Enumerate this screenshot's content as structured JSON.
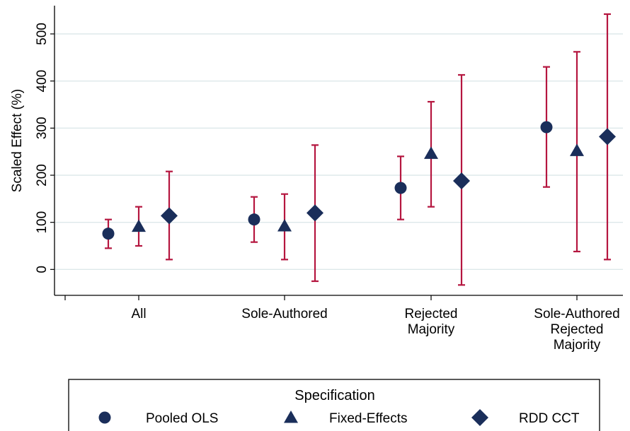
{
  "chart_data": {
    "type": "scatter",
    "subtype": "point-estimate-with-confidence-intervals",
    "ylabel": "Scaled Effect (%)",
    "xlabel": "",
    "ylim": [
      -55,
      560
    ],
    "yticks": [
      0,
      100,
      200,
      300,
      400,
      500
    ],
    "grid": true,
    "categories": [
      [
        "All"
      ],
      [
        "Sole-Authored"
      ],
      [
        "Rejected",
        "Majority"
      ],
      [
        "Sole-Authored",
        "Rejected",
        "Majority"
      ]
    ],
    "series": [
      {
        "name": "Pooled OLS",
        "marker": "circle",
        "values": [
          76,
          106,
          173,
          302
        ],
        "ci_low": [
          45,
          58,
          106,
          175
        ],
        "ci_high": [
          106,
          154,
          240,
          430
        ]
      },
      {
        "name": "Fixed-Effects",
        "marker": "triangle",
        "values": [
          91,
          92,
          246,
          252
        ],
        "ci_low": [
          50,
          21,
          133,
          38
        ],
        "ci_high": [
          133,
          160,
          356,
          462
        ]
      },
      {
        "name": "RDD CCT",
        "marker": "diamond",
        "values": [
          114,
          120,
          188,
          282
        ],
        "ci_low": [
          21,
          -25,
          -33,
          21
        ],
        "ci_high": [
          208,
          264,
          413,
          542
        ]
      }
    ],
    "legend": {
      "title": "Specification",
      "placement": "bottom"
    },
    "colors": {
      "marker": "#1a2e5a",
      "ci": "#b5163f",
      "grid": "#dde8ea",
      "axis": "#000000"
    }
  }
}
